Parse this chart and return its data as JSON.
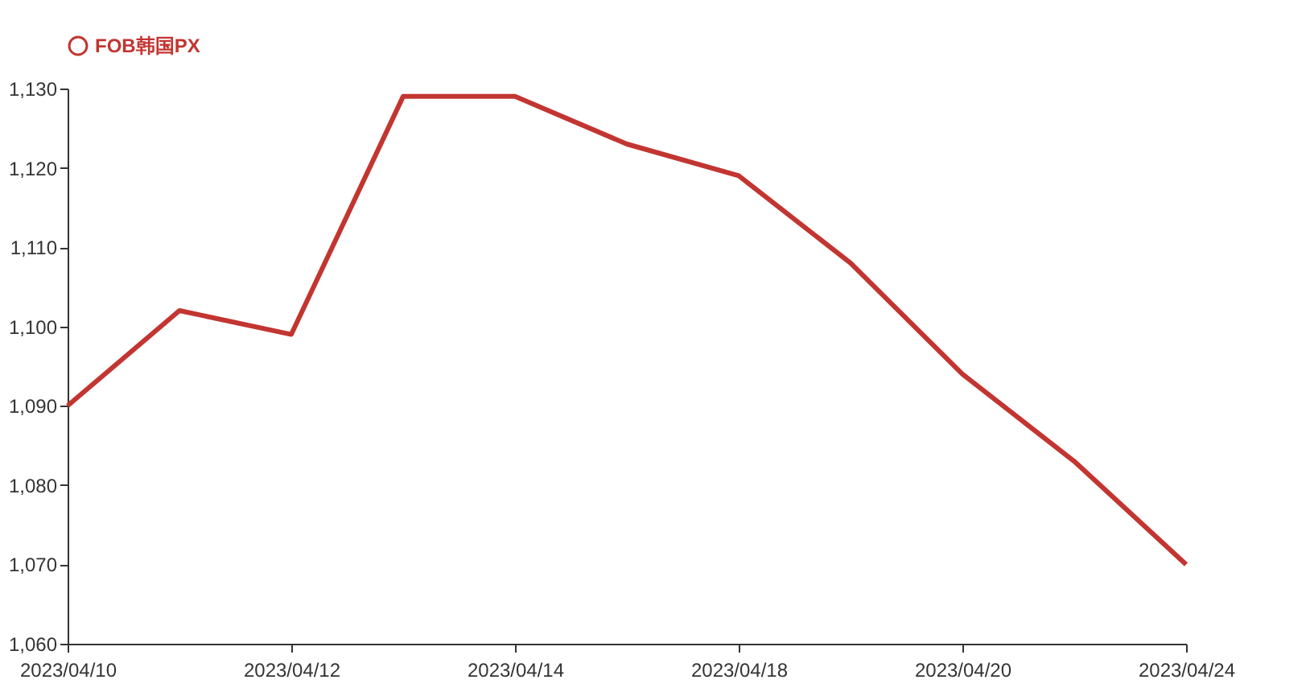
{
  "chart_data": {
    "type": "line",
    "categories": [
      "2023/04/10",
      null,
      "2023/04/12",
      null,
      "2023/04/14",
      null,
      "2023/04/18",
      null,
      "2023/04/20",
      null,
      "2023/04/24"
    ],
    "series": [
      {
        "name": "FOB韩国PX",
        "color": "#c23531",
        "values": [
          1090,
          1102,
          1099,
          1129,
          1129,
          1123,
          1119,
          1108,
          1094,
          1083,
          1070
        ]
      }
    ],
    "ylim": [
      1060,
      1130
    ],
    "yticks": [
      {
        "value": 1060,
        "label": "1,060"
      },
      {
        "value": 1070,
        "label": "1,070"
      },
      {
        "value": 1080,
        "label": "1,080"
      },
      {
        "value": 1090,
        "label": "1,090"
      },
      {
        "value": 1100,
        "label": "1,100"
      },
      {
        "value": 1110,
        "label": "1,110"
      },
      {
        "value": 1120,
        "label": "1,120"
      },
      {
        "value": 1130,
        "label": "1,130"
      }
    ],
    "grid": false,
    "legend": "top",
    "marker": "none",
    "line_style": "solid"
  }
}
